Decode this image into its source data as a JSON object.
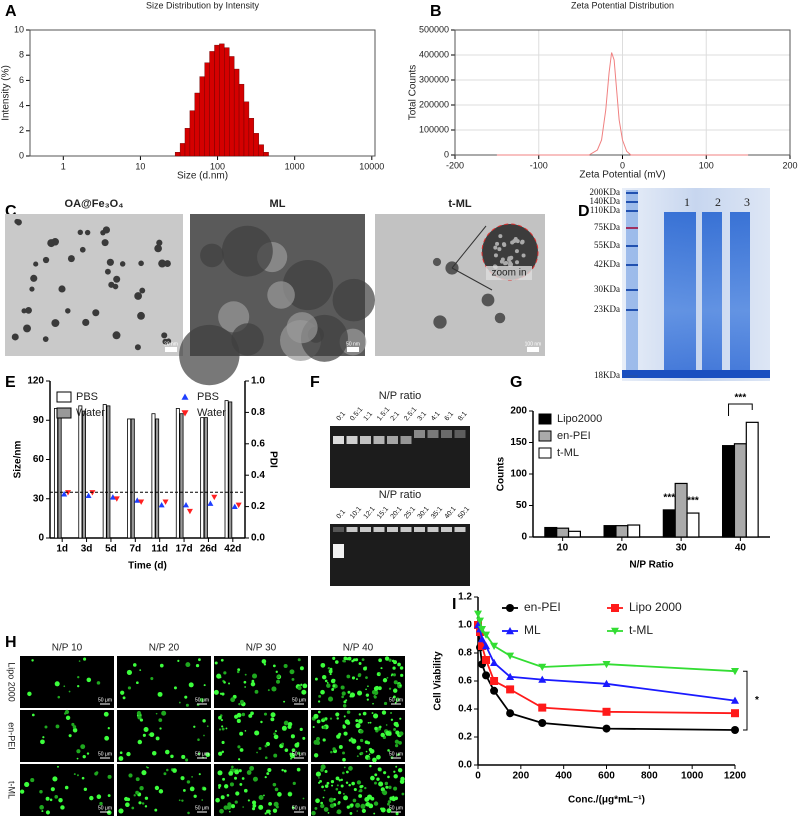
{
  "chart_data": [
    {
      "panel": "A",
      "type": "histogram",
      "title": "Size Distribution by Intensity",
      "xlabel": "Size (d.nm)",
      "ylabel": "Intensity (%)",
      "xlog": true,
      "bins": [
        28.2,
        32.7,
        37.8,
        43.8,
        50.7,
        58.8,
        68.1,
        78.8,
        91.3,
        105.7,
        122.4,
        141.8,
        164.2,
        190.1,
        220.2,
        255.0,
        295.3,
        342.0,
        396.1,
        458.7
      ],
      "counts": [
        0.3,
        1.0,
        2.2,
        3.6,
        5.0,
        6.3,
        7.4,
        8.3,
        8.8,
        8.9,
        8.6,
        7.9,
        6.9,
        5.7,
        4.3,
        3.0,
        1.8,
        0.9,
        0.3
      ],
      "color": "#d40000",
      "xlim": [
        0.37,
        11000
      ],
      "ylim": [
        0,
        10
      ],
      "xticks": [
        1,
        10,
        100,
        1000,
        10000
      ],
      "yticks": [
        0,
        2,
        4,
        6,
        8,
        10
      ],
      "grid": false
    },
    {
      "panel": "B",
      "type": "line",
      "title": "Zeta Potential Distribution",
      "xlabel": "Zeta Potential (mV)",
      "ylabel": "Total Counts",
      "x": [
        -150,
        -40,
        -30,
        -25,
        -20,
        -16,
        -13,
        -10,
        -7,
        -4,
        0,
        5,
        10,
        150
      ],
      "values": [
        0,
        0,
        20000,
        60000,
        180000,
        330000,
        410000,
        380000,
        260000,
        140000,
        60000,
        15000,
        0,
        0
      ],
      "color": "#f08080",
      "xlim": [
        -200,
        200
      ],
      "ylim": [
        0,
        500000
      ],
      "xticks": [
        -200,
        -100,
        0,
        100,
        200
      ],
      "yticks": [
        0,
        100000,
        200000,
        300000,
        400000,
        500000
      ],
      "grid": true
    },
    {
      "panel": "E",
      "type": "bar_dual",
      "xlabel": "Time (d)",
      "ylabel": "Size/nm",
      "y2label": "PDI",
      "categories": [
        "1d",
        "3d",
        "5d",
        "7d",
        "11d",
        "17d",
        "26d",
        "42d"
      ],
      "series": [
        {
          "name": "PBS",
          "color": "#ffffff",
          "values": [
            99,
            101,
            102,
            91,
            95,
            99,
            92,
            105
          ]
        },
        {
          "name": "Water",
          "color": "#999999",
          "values": [
            96,
            97,
            101,
            91,
            91,
            95,
            92,
            104
          ]
        },
        {
          "name": "PBS",
          "color": "#1f3fff",
          "axis": "y2",
          "marker": "triangle-up",
          "values": [
            0.28,
            0.27,
            0.26,
            0.24,
            0.21,
            0.21,
            0.22,
            0.2
          ]
        },
        {
          "name": "Water",
          "color": "#ff2020",
          "axis": "y2",
          "marker": "triangle-down",
          "values": [
            0.29,
            0.29,
            0.25,
            0.23,
            0.23,
            0.17,
            0.26,
            0.21
          ]
        }
      ],
      "ylim": [
        0,
        120
      ],
      "yticks": [
        0,
        30,
        60,
        90,
        120
      ],
      "y2lim": [
        0,
        1
      ],
      "y2ticks": [
        {
          "value": 0,
          "label": "0.0"
        },
        0.2,
        0.4,
        0.6,
        0.8,
        {
          "value": 1,
          "label": "1.0"
        }
      ],
      "hline": 35
    },
    {
      "panel": "G",
      "type": "bar",
      "xlabel": "N/P Ratio",
      "ylabel": "Counts",
      "categories": [
        "10",
        "20",
        "30",
        "40"
      ],
      "series": [
        {
          "name": "Lipo2000",
          "color": "#000000",
          "values": [
            15,
            18,
            43,
            145
          ]
        },
        {
          "name": "en-PEI",
          "color": "#aaaaaa",
          "values": [
            14,
            18,
            85,
            148
          ]
        },
        {
          "name": "t-ML",
          "color": "#ffffff",
          "values": [
            9,
            19,
            38,
            182
          ]
        }
      ],
      "ylim": [
        0,
        200
      ],
      "yticks": [
        0,
        50,
        100,
        150,
        200
      ],
      "annotations": [
        "***",
        "***",
        "***"
      ]
    },
    {
      "panel": "I",
      "type": "line",
      "xlabel": "Conc./(μg*mL⁻¹)",
      "ylabel": "Cell Viability",
      "x": [
        0,
        9.4,
        18.75,
        37.5,
        75,
        150,
        300,
        600,
        1200
      ],
      "series": [
        {
          "name": "en-PEI",
          "color": "#000000",
          "marker": "circle",
          "values": [
            1.0,
            0.84,
            0.72,
            0.64,
            0.53,
            0.37,
            0.3,
            0.26,
            0.25
          ]
        },
        {
          "name": "Lipo 2000",
          "color": "#ff1a1a",
          "marker": "square",
          "values": [
            1.0,
            0.95,
            0.85,
            0.75,
            0.6,
            0.54,
            0.41,
            0.38,
            0.37
          ]
        },
        {
          "name": "ML",
          "color": "#1a1aff",
          "marker": "triangle-up",
          "values": [
            1.0,
            0.97,
            0.9,
            0.85,
            0.73,
            0.63,
            0.61,
            0.58,
            0.46
          ]
        },
        {
          "name": "t-ML",
          "color": "#33dd33",
          "marker": "triangle-down",
          "values": [
            1.08,
            1.03,
            0.97,
            0.93,
            0.85,
            0.78,
            0.7,
            0.72,
            0.67
          ]
        }
      ],
      "xlim": [
        0,
        1200
      ],
      "ylim": [
        0,
        1.2
      ],
      "xticks": [
        0,
        200,
        400,
        600,
        800,
        1000,
        1200
      ],
      "yticks": [
        {
          "value": 0,
          "label": "0.0"
        },
        0.2,
        0.4,
        0.6,
        0.8,
        {
          "value": 1,
          "label": "1.0"
        },
        1.2
      ],
      "annotations": [
        "*"
      ]
    }
  ],
  "figures": [
    {
      "panel": "C",
      "images": [
        {
          "title": "OA@Fe₃O₄",
          "scale_bar": "20 nm"
        },
        {
          "title": "ML",
          "scale_bar": "50 nm"
        },
        {
          "title": "t-ML",
          "scale_bar": "100 nm",
          "inset": "zoom in"
        }
      ]
    },
    {
      "panel": "D",
      "lanes": [
        "1",
        "2",
        "3"
      ],
      "markers": [
        "200KDa",
        "140KDa",
        "110KDa",
        "75KDa",
        "55KDa",
        "42KDa",
        "30KDa",
        "23KDa",
        "18KDa"
      ]
    },
    {
      "panel": "F",
      "gels": [
        {
          "title": "N/P ratio",
          "lanes": [
            "0:1",
            "0.5:1",
            "1:1",
            "1.5:1",
            "2:1",
            "2.5:1",
            "3:1",
            "4:1",
            "6:1",
            "8:1"
          ]
        },
        {
          "title": "N/P ratio",
          "lanes": [
            "0:1",
            "10:1",
            "12:1",
            "15:1",
            "20:1",
            "25:1",
            "30:1",
            "35:1",
            "40:1",
            "50:1"
          ]
        }
      ]
    },
    {
      "panel": "H",
      "columns": [
        "N/P 10",
        "N/P 20",
        "N/P 30",
        "N/P 40"
      ],
      "rows": [
        "Lipo 2000",
        "en-PEI",
        "t-ML"
      ],
      "scale_bar": "50 μm"
    }
  ]
}
